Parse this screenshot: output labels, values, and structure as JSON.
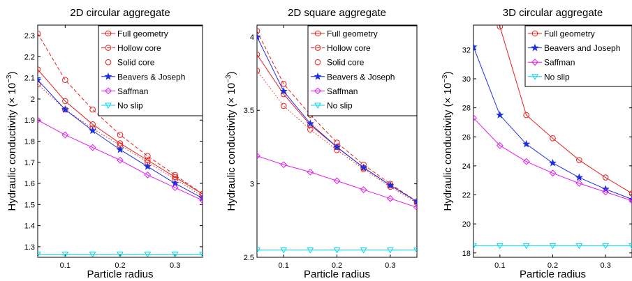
{
  "chart_data": [
    {
      "type": "line",
      "title": "2D circular aggregate",
      "xlabel": "Particle radius",
      "ylabel": "Hydraulic conductivity (× 10",
      "ylabel_exp": "−3",
      "ylabel_close": ")",
      "xlim": [
        0.05,
        0.35
      ],
      "ylim": [
        1.25,
        2.35
      ],
      "xticks": [
        0.1,
        0.2,
        0.3
      ],
      "xtick_labels": [
        "0.1",
        "0.2",
        "0.3"
      ],
      "yticks": [
        1.3,
        1.4,
        1.5,
        1.6,
        1.7,
        1.8,
        1.9,
        2.0,
        2.1,
        2.2,
        2.3
      ],
      "ytick_labels": [
        "1.3",
        "1.4",
        "1.5",
        "1.6",
        "1.7",
        "1.8",
        "1.9",
        "2",
        "2.1",
        "2.2",
        "2.3"
      ],
      "legend_position": "top-right",
      "x": [
        0.05,
        0.1,
        0.15,
        0.2,
        0.25,
        0.3,
        0.35
      ],
      "series": [
        {
          "name": "Full geometry",
          "color": "#e8201e",
          "marker": "circle",
          "line": "solid",
          "values": [
            2.14,
            1.99,
            1.88,
            1.79,
            1.71,
            1.63,
            1.55
          ]
        },
        {
          "name": "Hollow core",
          "color": "#e8201e",
          "marker": "circle",
          "line": "dashed",
          "values": [
            2.31,
            2.09,
            1.95,
            1.83,
            1.73,
            1.64,
            1.55
          ]
        },
        {
          "name": "Solid core",
          "color": "#e8201e",
          "marker": "circle",
          "line": "dotted",
          "values": [
            2.07,
            1.95,
            1.86,
            1.78,
            1.7,
            1.62,
            1.54
          ]
        },
        {
          "name": "Beavers & Joseph",
          "color": "#1b2fe0",
          "marker": "star",
          "line": "solid",
          "values": [
            2.09,
            1.95,
            1.85,
            1.76,
            1.68,
            1.6,
            1.53
          ]
        },
        {
          "name": "Saffman",
          "color": "#e51bf0",
          "marker": "diamond",
          "line": "solid",
          "values": [
            1.9,
            1.83,
            1.77,
            1.71,
            1.64,
            1.58,
            1.52
          ]
        },
        {
          "name": "No slip",
          "color": "#00d8ec",
          "marker": "triangle-down",
          "line": "solid",
          "values": [
            1.265,
            1.265,
            1.265,
            1.265,
            1.265,
            1.265,
            1.265
          ]
        }
      ]
    },
    {
      "type": "line",
      "title": "2D square aggregate",
      "xlabel": "Particle radius",
      "ylabel": "Hydraulic conductivity (× 10",
      "ylabel_exp": "−3",
      "ylabel_close": ")",
      "xlim": [
        0.05,
        0.35
      ],
      "ylim": [
        2.5,
        4.08
      ],
      "xticks": [
        0.1,
        0.2,
        0.3
      ],
      "xtick_labels": [
        "0.1",
        "0.2",
        "0.3"
      ],
      "yticks": [
        2.5,
        3.0,
        3.5,
        4.0
      ],
      "ytick_labels": [
        "2.5",
        "3",
        "3.5",
        "4"
      ],
      "legend_position": "top-right",
      "x": [
        0.05,
        0.1,
        0.15,
        0.2,
        0.25,
        0.3,
        0.35
      ],
      "series": [
        {
          "name": "Full geometry",
          "color": "#e8201e",
          "marker": "circle",
          "line": "solid",
          "values": [
            3.88,
            3.61,
            3.4,
            3.25,
            3.11,
            2.99,
            2.88
          ]
        },
        {
          "name": "Hollow core",
          "color": "#e8201e",
          "marker": "circle",
          "line": "dashed",
          "values": [
            4.04,
            3.68,
            3.47,
            3.28,
            3.13,
            3.0,
            2.88
          ]
        },
        {
          "name": "Solid core",
          "color": "#e8201e",
          "marker": "circle",
          "line": "dotted",
          "values": [
            3.77,
            3.53,
            3.37,
            3.23,
            3.1,
            2.98,
            2.87
          ]
        },
        {
          "name": "Beavers & Joseph",
          "color": "#1b2fe0",
          "marker": "star",
          "line": "solid",
          "values": [
            4.0,
            3.63,
            3.41,
            3.25,
            3.11,
            2.99,
            2.88
          ]
        },
        {
          "name": "Saffman",
          "color": "#e51bf0",
          "marker": "diamond",
          "line": "solid",
          "values": [
            3.19,
            3.13,
            3.08,
            3.02,
            2.96,
            2.9,
            2.84
          ]
        },
        {
          "name": "No slip",
          "color": "#00d8ec",
          "marker": "triangle-down",
          "line": "solid",
          "values": [
            2.55,
            2.55,
            2.55,
            2.55,
            2.55,
            2.55,
            2.55
          ]
        }
      ]
    },
    {
      "type": "line",
      "title": "3D circular aggregate",
      "xlabel": "Particle radius",
      "ylabel": "Hydraulic conductivity (× 10",
      "ylabel_exp": "−3",
      "ylabel_close": ")",
      "xlim": [
        0.05,
        0.35
      ],
      "ylim": [
        17.7,
        33.7
      ],
      "xticks": [
        0.1,
        0.2,
        0.3
      ],
      "xtick_labels": [
        "0.1",
        "0.2",
        "0.3"
      ],
      "yticks": [
        18,
        20,
        22,
        24,
        26,
        28,
        30,
        32
      ],
      "ytick_labels": [
        "18",
        "20",
        "22",
        "24",
        "26",
        "28",
        "30",
        "32"
      ],
      "legend_position": "top-right",
      "x": [
        0.05,
        0.1,
        0.15,
        0.2,
        0.25,
        0.3,
        0.35
      ],
      "series": [
        {
          "name": "Full geometry",
          "color": "#e8201e",
          "marker": "circle",
          "line": "solid",
          "values": [
            null,
            33.6,
            27.5,
            25.9,
            24.4,
            23.2,
            22.1
          ]
        },
        {
          "name": "Beavers and Joseph",
          "color": "#1b2fe0",
          "marker": "star",
          "line": "solid",
          "values": [
            32.2,
            27.5,
            25.5,
            24.2,
            23.2,
            22.4,
            21.7
          ]
        },
        {
          "name": "Saffman",
          "color": "#e51bf0",
          "marker": "diamond",
          "line": "solid",
          "values": [
            27.3,
            25.4,
            24.3,
            23.5,
            22.8,
            22.2,
            21.6
          ]
        },
        {
          "name": "No slip",
          "color": "#00d8ec",
          "marker": "triangle-down",
          "line": "solid",
          "values": [
            18.5,
            18.5,
            18.5,
            18.5,
            18.5,
            18.5,
            18.5
          ]
        }
      ]
    }
  ]
}
